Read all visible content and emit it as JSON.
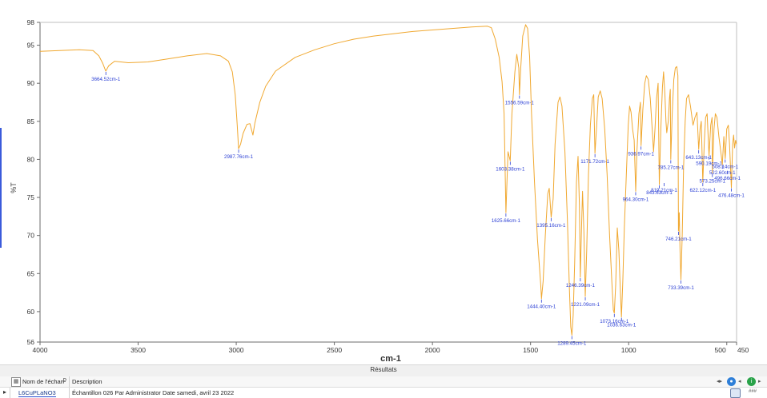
{
  "chart_data": {
    "type": "line",
    "title": "",
    "xlabel": "cm-1",
    "ylabel": "%T",
    "xlim": [
      4000,
      450
    ],
    "ylim": [
      56,
      98
    ],
    "x_ticks": [
      {
        "value": 4000,
        "label": "4000"
      },
      {
        "value": 3500,
        "label": "3500"
      },
      {
        "value": 3000,
        "label": "3000"
      },
      {
        "value": 2500,
        "label": "2500"
      },
      {
        "value": 2000,
        "label": "2000"
      },
      {
        "value": 1500,
        "label": "1500"
      },
      {
        "value": 1000,
        "label": "1000"
      },
      {
        "value": 500,
        "label": "500"
      },
      {
        "value": 450,
        "label": "450"
      }
    ],
    "y_ticks": [
      {
        "value": 98,
        "label": "98"
      },
      {
        "value": 95,
        "label": "95"
      },
      {
        "value": 90,
        "label": "90"
      },
      {
        "value": 85,
        "label": "85"
      },
      {
        "value": 80,
        "label": "80"
      },
      {
        "value": 75,
        "label": "75"
      },
      {
        "value": 70,
        "label": "70"
      },
      {
        "value": 65,
        "label": "65"
      },
      {
        "value": 60,
        "label": "60"
      },
      {
        "value": 56,
        "label": "56"
      }
    ],
    "series_color": "#f0a830",
    "label_color": "#2b3fd4",
    "series": [
      {
        "points": [
          [
            4000,
            94.2
          ],
          [
            3900,
            94.3
          ],
          [
            3800,
            94.4
          ],
          [
            3730,
            94.3
          ],
          [
            3700,
            93.6
          ],
          [
            3680,
            92.6
          ],
          [
            3665,
            91.6
          ],
          [
            3650,
            92.3
          ],
          [
            3620,
            92.9
          ],
          [
            3550,
            92.7
          ],
          [
            3450,
            92.8
          ],
          [
            3350,
            93.2
          ],
          [
            3250,
            93.6
          ],
          [
            3150,
            93.9
          ],
          [
            3080,
            93.6
          ],
          [
            3040,
            92.9
          ],
          [
            3020,
            91.5
          ],
          [
            3005,
            88.5
          ],
          [
            2995,
            84.5
          ],
          [
            2988,
            81.4
          ],
          [
            2978,
            82.0
          ],
          [
            2965,
            83.4
          ],
          [
            2945,
            84.6
          ],
          [
            2930,
            84.7
          ],
          [
            2915,
            83.2
          ],
          [
            2905,
            84.8
          ],
          [
            2880,
            87.5
          ],
          [
            2850,
            89.6
          ],
          [
            2800,
            91.6
          ],
          [
            2700,
            93.4
          ],
          [
            2600,
            94.4
          ],
          [
            2500,
            95.2
          ],
          [
            2400,
            95.8
          ],
          [
            2300,
            96.2
          ],
          [
            2200,
            96.5
          ],
          [
            2100,
            96.8
          ],
          [
            2000,
            97.0
          ],
          [
            1900,
            97.2
          ],
          [
            1800,
            97.4
          ],
          [
            1720,
            97.5
          ],
          [
            1700,
            97.3
          ],
          [
            1680,
            95.8
          ],
          [
            1660,
            93.4
          ],
          [
            1645,
            90.2
          ],
          [
            1635,
            86.0
          ],
          [
            1625.66,
            73.0
          ],
          [
            1615,
            81.0
          ],
          [
            1603.38,
            79.8
          ],
          [
            1595,
            86.0
          ],
          [
            1580,
            91.5
          ],
          [
            1570,
            93.8
          ],
          [
            1560,
            92.0
          ],
          [
            1556.59,
            88.5
          ],
          [
            1550,
            92.0
          ],
          [
            1540,
            96.2
          ],
          [
            1525,
            97.7
          ],
          [
            1515,
            97.2
          ],
          [
            1505,
            93.5
          ],
          [
            1495,
            86.0
          ],
          [
            1480,
            77.0
          ],
          [
            1465,
            69.5
          ],
          [
            1455,
            66.0
          ],
          [
            1448,
            63.5
          ],
          [
            1444.4,
            61.7
          ],
          [
            1436,
            64.0
          ],
          [
            1425,
            70.0
          ],
          [
            1412,
            75.5
          ],
          [
            1405,
            76.2
          ],
          [
            1395.16,
            72.4
          ],
          [
            1385,
            74.8
          ],
          [
            1375,
            82.0
          ],
          [
            1360,
            87.5
          ],
          [
            1350,
            88.2
          ],
          [
            1340,
            87.0
          ],
          [
            1325,
            81.0
          ],
          [
            1312,
            72.0
          ],
          [
            1302,
            63.0
          ],
          [
            1295,
            58.0
          ],
          [
            1289.45,
            56.9
          ],
          [
            1283,
            59.5
          ],
          [
            1275,
            66.5
          ],
          [
            1266,
            77.0
          ],
          [
            1258,
            80.4
          ],
          [
            1251,
            74.0
          ],
          [
            1246.39,
            64.5
          ],
          [
            1241,
            70.0
          ],
          [
            1235,
            75.8
          ],
          [
            1228,
            70.5
          ],
          [
            1221.09,
            62.0
          ],
          [
            1214,
            68.0
          ],
          [
            1205,
            78.0
          ],
          [
            1195,
            84.5
          ],
          [
            1185,
            88.0
          ],
          [
            1178,
            88.5
          ],
          [
            1171.72,
            80.8
          ],
          [
            1163,
            84.5
          ],
          [
            1155,
            88.2
          ],
          [
            1145,
            89.0
          ],
          [
            1135,
            88.0
          ],
          [
            1122,
            84.0
          ],
          [
            1110,
            78.0
          ],
          [
            1097,
            70.0
          ],
          [
            1085,
            63.5
          ],
          [
            1078,
            60.2
          ],
          [
            1073.16,
            59.8
          ],
          [
            1066,
            63.5
          ],
          [
            1058,
            71.0
          ],
          [
            1050,
            68.0
          ],
          [
            1042,
            62.5
          ],
          [
            1036.63,
            59.3
          ],
          [
            1030,
            64.0
          ],
          [
            1022,
            71.0
          ],
          [
            1012,
            78.0
          ],
          [
            1002,
            84.5
          ],
          [
            995,
            87.0
          ],
          [
            988,
            86.2
          ],
          [
            980,
            84.0
          ],
          [
            972,
            82.5
          ],
          [
            964.3,
            75.8
          ],
          [
            958,
            81.0
          ],
          [
            948,
            86.0
          ],
          [
            940,
            87.5
          ],
          [
            936.97,
            81.8
          ],
          [
            928,
            86.5
          ],
          [
            918,
            90.0
          ],
          [
            910,
            91.0
          ],
          [
            900,
            90.5
          ],
          [
            890,
            88.0
          ],
          [
            880,
            84.0
          ],
          [
            873,
            81.0
          ],
          [
            866,
            84.0
          ],
          [
            858,
            88.0
          ],
          [
            850,
            90.0
          ],
          [
            843.63,
            76.7
          ],
          [
            836,
            84.0
          ],
          [
            828,
            89.5
          ],
          [
            822,
            91.5
          ],
          [
            815,
            88.5
          ],
          [
            810,
            85.0
          ],
          [
            806,
            83.5
          ],
          [
            798,
            85.0
          ],
          [
            792,
            88.0
          ],
          [
            788,
            89.2
          ],
          [
            785.27,
            80.0
          ],
          [
            778,
            86.0
          ],
          [
            770,
            90.5
          ],
          [
            762,
            92.0
          ],
          [
            755,
            92.2
          ],
          [
            749,
            91.0
          ],
          [
            746.21,
            70.6
          ],
          [
            742,
            73.0
          ],
          [
            738,
            68.0
          ],
          [
            733.39,
            64.2
          ],
          [
            727,
            70.0
          ],
          [
            720,
            79.0
          ],
          [
            712,
            85.0
          ],
          [
            705,
            88.0
          ],
          [
            695,
            88.5
          ],
          [
            685,
            87.0
          ],
          [
            672,
            84.5
          ],
          [
            662,
            85.5
          ],
          [
            652,
            86.2
          ],
          [
            643.13,
            81.3
          ],
          [
            636,
            84.0
          ],
          [
            630,
            85.0
          ],
          [
            622.12,
            77.0
          ],
          [
            615,
            82.0
          ],
          [
            608,
            85.5
          ],
          [
            600,
            86.0
          ],
          [
            590.19,
            80.5
          ],
          [
            582,
            84.5
          ],
          [
            575,
            85.5
          ],
          [
            573.25,
            78.2
          ],
          [
            565,
            84.0
          ],
          [
            558,
            86.0
          ],
          [
            550,
            85.5
          ],
          [
            540,
            83.0
          ],
          [
            528,
            80.5
          ],
          [
            522.6,
            79.3
          ],
          [
            515,
            83.0
          ],
          [
            508.14,
            80.1
          ],
          [
            500,
            84.0
          ],
          [
            492,
            84.5
          ],
          [
            486,
            82.0
          ],
          [
            476.48,
            76.3
          ],
          [
            470,
            82.0
          ],
          [
            465,
            83.2
          ],
          [
            460,
            81.5
          ],
          [
            455,
            82.5
          ],
          [
            450,
            82.0
          ]
        ]
      }
    ],
    "annotations": [
      {
        "x": 3664.52,
        "y": 91.6,
        "label": "3664.52cm-1"
      },
      {
        "x": 2987.76,
        "y": 81.4,
        "label": "2987.76cm-1"
      },
      {
        "x": 1625.66,
        "y": 73.0,
        "label": "1625.66cm-1"
      },
      {
        "x": 1603.38,
        "y": 79.8,
        "label": "1603.38cm-1"
      },
      {
        "x": 1556.59,
        "y": 88.5,
        "label": "1556.59cm-1"
      },
      {
        "x": 1444.4,
        "y": 61.7,
        "label": "1444.40cm-1"
      },
      {
        "x": 1395.16,
        "y": 72.4,
        "label": "1395.16cm-1"
      },
      {
        "x": 1289.45,
        "y": 56.9,
        "label": "1289.45cm-1"
      },
      {
        "x": 1246.39,
        "y": 64.5,
        "label": "1246.39cm-1"
      },
      {
        "x": 1221.09,
        "y": 62.0,
        "label": "1221.09cm-1"
      },
      {
        "x": 1171.72,
        "y": 80.8,
        "label": "1171.72cm-1"
      },
      {
        "x": 1073.16,
        "y": 59.8,
        "label": "1073.16cm-1"
      },
      {
        "x": 1036.63,
        "y": 59.3,
        "label": "1036.63cm-1"
      },
      {
        "x": 964.3,
        "y": 75.8,
        "label": "964.30cm-1"
      },
      {
        "x": 936.97,
        "y": 81.8,
        "label": "936.97cm-1"
      },
      {
        "x": 843.63,
        "y": 76.7,
        "label": "843.63cm-1"
      },
      {
        "x": 819.21,
        "y": 77.0,
        "label": "819.21cm-1"
      },
      {
        "x": 785.27,
        "y": 80.0,
        "label": "785.27cm-1"
      },
      {
        "x": 746.21,
        "y": 70.6,
        "label": "746.21cm-1"
      },
      {
        "x": 733.39,
        "y": 64.2,
        "label": "733.39cm-1"
      },
      {
        "x": 643.13,
        "y": 81.3,
        "label": "643.13cm-1"
      },
      {
        "x": 590.19,
        "y": 80.5,
        "label": "590.19cm-1"
      },
      {
        "x": 573.25,
        "y": 78.2,
        "label": "573.25cm-1"
      },
      {
        "x": 622.12,
        "y": 77.0,
        "label": "622.12cm-1"
      },
      {
        "x": 522.6,
        "y": 79.3,
        "label": "522.60cm-1"
      },
      {
        "x": 508.14,
        "y": 80.1,
        "label": "508.14cm-1"
      },
      {
        "x": 496.66,
        "y": 78.6,
        "label": "496.66cm-1"
      },
      {
        "x": 476.48,
        "y": 76.3,
        "label": "476.48cm-1"
      }
    ]
  },
  "results_label": "Résultats",
  "table": {
    "col_name_header": "Nom de l'échan",
    "col_desc_header": "Description",
    "row": {
      "name": "L6CuPLaNO3",
      "description": "Échantillon 026 Par Administrator Date samedi, avril 23 2022"
    },
    "footer_value": "###"
  },
  "colors": {
    "axis": "#6b6b6b",
    "grid_frame": "#bfbfbf"
  }
}
